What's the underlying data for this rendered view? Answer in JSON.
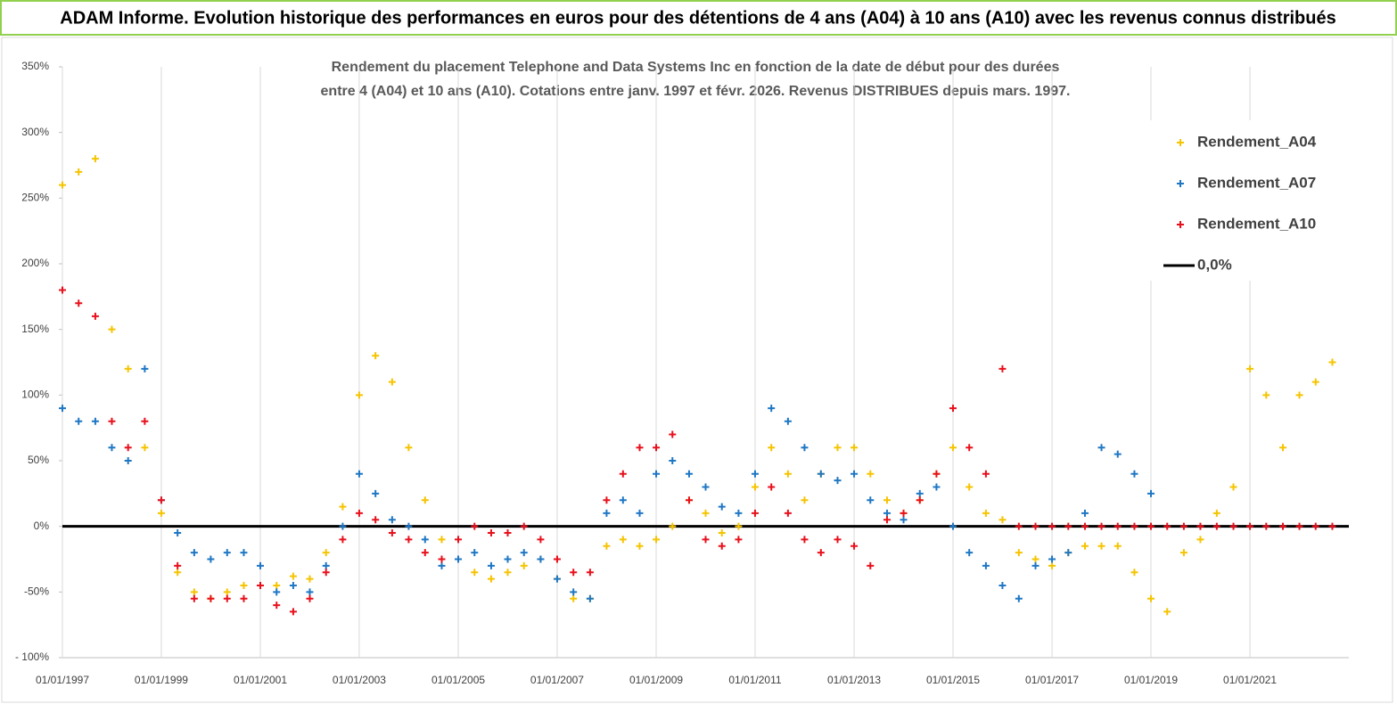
{
  "header": {
    "title": "ADAM Informe. Evolution historique des performances en euros pour des détentions de 4 ans (A04) à 10 ans (A10) avec les revenus connus distribués"
  },
  "chart_data": {
    "type": "scatter",
    "subtitle": [
      "Rendement du placement Telephone and Data Systems Inc en fonction de la date de début pour des durées",
      "entre 4 (A04) et 10 ans (A10).  Cotations entre janv. 1997 et févr. 2026. Revenus DISTRIBUES depuis mars. 1997."
    ],
    "x": [
      "01/01/1997",
      "01/05/1997",
      "01/09/1997",
      "01/01/1998",
      "01/05/1998",
      "01/09/1998",
      "01/01/1999",
      "01/05/1999",
      "01/09/1999",
      "01/01/2000",
      "01/05/2000",
      "01/09/2000",
      "01/01/2001",
      "01/05/2001",
      "01/09/2001",
      "01/01/2002",
      "01/05/2002",
      "01/09/2002",
      "01/01/2003",
      "01/05/2003",
      "01/09/2003",
      "01/01/2004",
      "01/05/2004",
      "01/09/2004",
      "01/01/2005",
      "01/05/2005",
      "01/09/2005",
      "01/01/2006",
      "01/05/2006",
      "01/09/2006",
      "01/01/2007",
      "01/05/2007",
      "01/09/2007",
      "01/01/2008",
      "01/05/2008",
      "01/09/2008",
      "01/01/2009",
      "01/05/2009",
      "01/09/2009",
      "01/01/2010",
      "01/05/2010",
      "01/09/2010",
      "01/01/2011",
      "01/05/2011",
      "01/09/2011",
      "01/01/2012",
      "01/05/2012",
      "01/09/2012",
      "01/01/2013",
      "01/05/2013",
      "01/09/2013",
      "01/01/2014",
      "01/05/2014",
      "01/09/2014",
      "01/01/2015",
      "01/05/2015",
      "01/09/2015",
      "01/01/2016",
      "01/05/2016",
      "01/09/2016",
      "01/01/2017",
      "01/05/2017",
      "01/09/2017",
      "01/01/2018",
      "01/05/2018",
      "01/09/2018",
      "01/01/2019",
      "01/05/2019",
      "01/09/2019",
      "01/01/2020",
      "01/05/2020",
      "01/09/2020",
      "01/01/2021",
      "01/05/2021",
      "01/09/2021",
      "01/01/2022",
      "01/05/2022",
      "01/09/2022"
    ],
    "series": [
      {
        "name": "Rendement_A04",
        "color": "#f5c400",
        "values": [
          260,
          270,
          280,
          150,
          120,
          60,
          10,
          -35,
          -50,
          -55,
          -50,
          -45,
          -45,
          -45,
          -38,
          -40,
          -20,
          15,
          100,
          130,
          110,
          60,
          20,
          -10,
          -25,
          -35,
          -40,
          -35,
          -30,
          -25,
          -40,
          -55,
          -55,
          -15,
          -10,
          -15,
          -10,
          0,
          20,
          10,
          -5,
          0,
          30,
          60,
          40,
          20,
          40,
          60,
          60,
          40,
          20,
          10,
          20,
          40,
          60,
          30,
          10,
          5,
          -20,
          -25,
          -30,
          -20,
          -15,
          -15,
          -15,
          -35,
          -55,
          -65,
          -20,
          -10,
          10,
          30,
          120,
          100,
          60,
          100,
          110,
          125
        ]
      },
      {
        "name": "Rendement_A07",
        "color": "#1f77c4",
        "values": [
          90,
          80,
          80,
          60,
          50,
          120,
          20,
          -5,
          -20,
          -25,
          -20,
          -20,
          -30,
          -50,
          -45,
          -50,
          -30,
          0,
          40,
          25,
          5,
          0,
          -10,
          -30,
          -25,
          -20,
          -30,
          -25,
          -20,
          -25,
          -40,
          -50,
          -55,
          10,
          20,
          10,
          40,
          50,
          40,
          30,
          15,
          10,
          40,
          90,
          80,
          60,
          40,
          35,
          40,
          20,
          10,
          5,
          25,
          30,
          0,
          -20,
          -30,
          -45,
          -55,
          -30,
          -25,
          -20,
          10,
          60,
          55,
          40,
          25,
          null,
          null,
          null,
          null,
          null,
          null,
          null,
          null,
          null,
          null,
          null
        ]
      },
      {
        "name": "Rendement_A10",
        "color": "#e8101c",
        "values": [
          180,
          170,
          160,
          80,
          60,
          80,
          20,
          -30,
          -55,
          -55,
          -55,
          -55,
          -45,
          -60,
          -65,
          -55,
          -35,
          -10,
          10,
          5,
          -5,
          -10,
          -20,
          -25,
          -10,
          0,
          -5,
          -5,
          0,
          -10,
          -25,
          -35,
          -35,
          20,
          40,
          60,
          60,
          70,
          20,
          -10,
          -15,
          -10,
          10,
          30,
          10,
          -10,
          -20,
          -10,
          -15,
          -30,
          5,
          10,
          20,
          40,
          90,
          60,
          40,
          120,
          0,
          0,
          0,
          0,
          0,
          0,
          0,
          0,
          0,
          0,
          0,
          0,
          0,
          0,
          0,
          0,
          0,
          0,
          0,
          0
        ]
      }
    ],
    "reference_line": {
      "name": "0,0%",
      "color": "#000000",
      "value": 0
    },
    "xlim": [
      "01/01/1997",
      "01/01/2023"
    ],
    "xticks": [
      "01/01/1997",
      "01/01/1999",
      "01/01/2001",
      "01/01/2003",
      "01/01/2005",
      "01/01/2007",
      "01/01/2009",
      "01/01/2011",
      "01/01/2013",
      "01/01/2015",
      "01/01/2017",
      "01/01/2019",
      "01/01/2021"
    ],
    "ylim": [
      -100,
      350
    ],
    "yticks": [
      {
        "value": -100,
        "label": "- 100%"
      },
      {
        "value": -50,
        "label": "-50%"
      },
      {
        "value": 0,
        "label": "0%"
      },
      {
        "value": 50,
        "label": "50%"
      },
      {
        "value": 100,
        "label": "100%"
      },
      {
        "value": 150,
        "label": "150%"
      },
      {
        "value": 200,
        "label": "200%"
      },
      {
        "value": 250,
        "label": "250%"
      },
      {
        "value": 300,
        "label": "300%"
      },
      {
        "value": 350,
        "label": "350%"
      }
    ],
    "grid": "x",
    "legend": "top-right"
  }
}
